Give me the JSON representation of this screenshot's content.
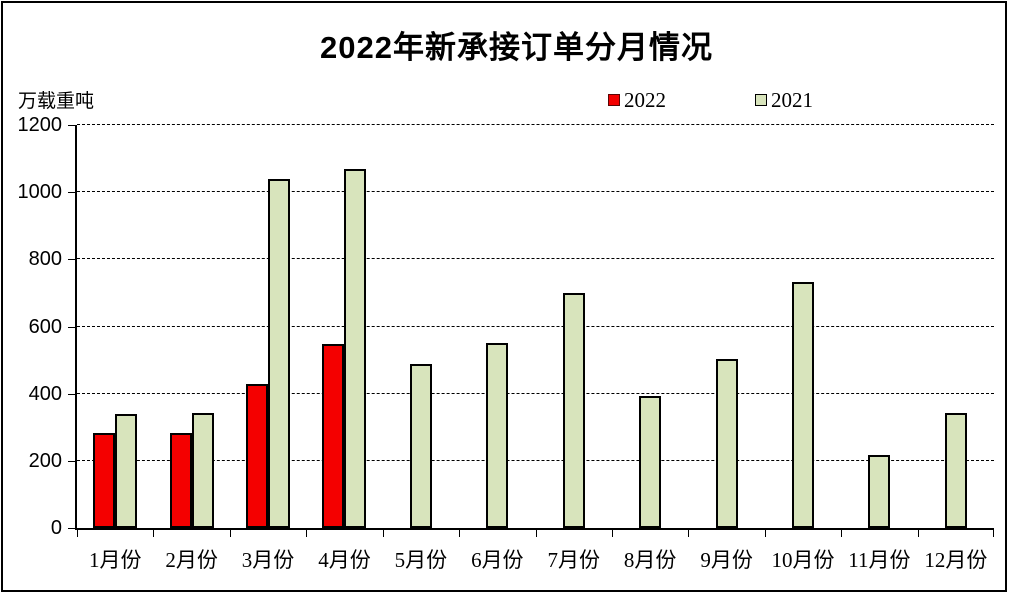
{
  "page": {
    "background": "#ffffff",
    "frame_color": "#000000"
  },
  "chart_data": {
    "type": "bar",
    "title": "2022年新承接订单分月情况",
    "unit_label": "万载重吨",
    "categories": [
      "1月份",
      "2月份",
      "3月份",
      "4月份",
      "5月份",
      "6月份",
      "7月份",
      "8月份",
      "9月份",
      "10月份",
      "11月份",
      "12月份"
    ],
    "series": [
      {
        "name": "2022",
        "color": "#f40000",
        "border_color": "#000000",
        "legend_swatch_border": "#5a0505",
        "values": [
          283,
          284,
          428,
          548,
          null,
          null,
          null,
          null,
          null,
          null,
          null,
          null
        ]
      },
      {
        "name": "2021",
        "color": "#d8e4bc",
        "border_color": "#000000",
        "legend_swatch_border": "#000000",
        "values": [
          340,
          343,
          1038,
          1068,
          488,
          550,
          700,
          392,
          503,
          732,
          217,
          341
        ]
      }
    ],
    "ylim": [
      0,
      1200
    ],
    "ytick_step": 200,
    "yticks": [
      0,
      200,
      400,
      600,
      800,
      1000,
      1200
    ],
    "grid": "horizontal-dashed",
    "legend_position": "top-center",
    "xlabel": "",
    "ylabel": ""
  }
}
